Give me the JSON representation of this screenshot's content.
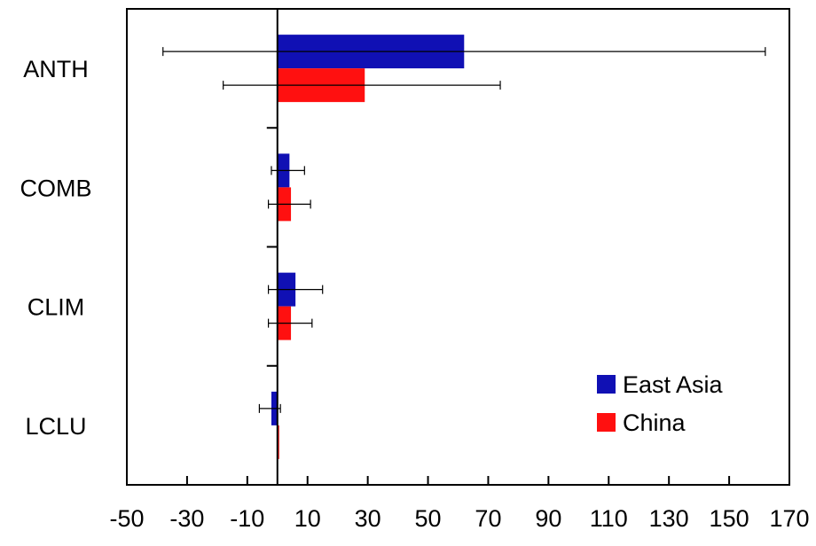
{
  "chart_data": {
    "type": "bar",
    "orientation": "horizontal",
    "categories": [
      "ANTH",
      "COMB",
      "CLIM",
      "LCLU"
    ],
    "x_ticks": [
      -50,
      -30,
      -10,
      10,
      30,
      50,
      70,
      90,
      110,
      130,
      150,
      170
    ],
    "xlim": [
      -50,
      170
    ],
    "series": [
      {
        "name": "East Asia",
        "color": "#1010b4",
        "values": [
          62,
          4,
          6,
          -2
        ],
        "error_low": [
          -38,
          -2,
          -3,
          -6
        ],
        "error_high": [
          162,
          9,
          15,
          1
        ]
      },
      {
        "name": "China",
        "color": "#ff1010",
        "values": [
          29,
          4.5,
          4.5,
          0.3
        ],
        "error_low": [
          -18,
          -3,
          -3,
          null
        ],
        "error_high": [
          74,
          11,
          11.5,
          null
        ]
      }
    ],
    "legend_position": "bottom-right",
    "grid": false,
    "title": "",
    "xlabel": "",
    "ylabel": ""
  }
}
